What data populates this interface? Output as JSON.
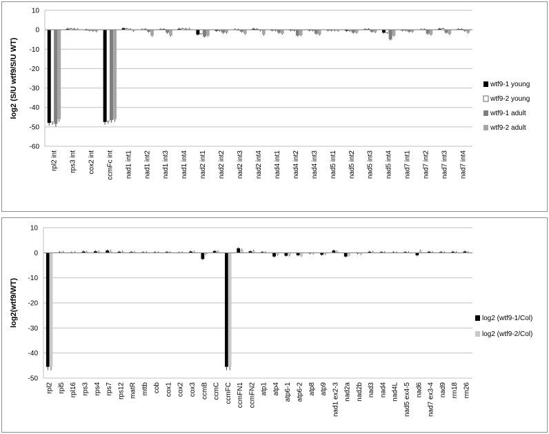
{
  "chart_data": [
    {
      "type": "bar",
      "title": "",
      "xlabel": "",
      "ylabel": "log2 (S/U wtf9/S/U WT)",
      "ylim": [
        -60,
        10
      ],
      "yticks": [
        10,
        0,
        -10,
        -20,
        -30,
        -40,
        -50,
        -60
      ],
      "grid": true,
      "legend": "right",
      "categories": [
        "rpl2 int",
        "rps3 int",
        "cox2 int",
        "ccmFc int",
        "nad1 int1",
        "nad1 int2",
        "nad1 int3",
        "nad1 int4",
        "nad2 int1",
        "nad2 int2",
        "nad2 int3",
        "nad2 int4",
        "nad4 int1",
        "nad4 int2",
        "nad4 int3",
        "nad5 int1",
        "nad5 int2",
        "nad5 int3",
        "nad5 int4",
        "nad7 int1",
        "nad7 int2",
        "nad7 int3",
        "nad7 int4"
      ],
      "series": [
        {
          "name": "wtf9-1 young",
          "color": "#000000",
          "values": [
            -48,
            0.5,
            0,
            -47.5,
            0.8,
            0.2,
            0.3,
            0.5,
            -2.5,
            -0.5,
            0.2,
            0.5,
            -0.3,
            -0.3,
            -0.3,
            -0.2,
            -0.5,
            0.3,
            -1.5,
            -0.2,
            0.2,
            0.5,
            0.3
          ]
        },
        {
          "name": "wtf9-2 young",
          "color": "#ffffff",
          "values": [
            -47.5,
            0.5,
            -0.3,
            -47,
            0.5,
            0.3,
            0.3,
            0.5,
            -2,
            -0.5,
            0,
            0.3,
            -0.3,
            -0.3,
            -0.3,
            -0.2,
            -0.5,
            0.3,
            -1.5,
            -0.2,
            0.2,
            0.5,
            0.3
          ]
        },
        {
          "name": "wtf9-1 adult",
          "color": "#7f7f7f",
          "values": [
            -48.5,
            0.5,
            -0.5,
            -46.5,
            0.3,
            -1,
            -1.5,
            0.5,
            -3.5,
            -1.5,
            -1,
            -0.3,
            -1.5,
            -3,
            -2,
            -0.3,
            -1.5,
            -1,
            -5,
            -1,
            -2,
            -1.5,
            -0.5
          ]
        },
        {
          "name": "wtf9-2 adult",
          "color": "#a6a6a6",
          "values": [
            -46,
            0.3,
            -0.8,
            -46,
            -0.5,
            -3,
            -3,
            0.5,
            -3,
            -1.5,
            -2,
            -2.5,
            -2,
            -2.8,
            -2.5,
            -0.5,
            -1.5,
            -1.2,
            -3,
            -1,
            -2.5,
            -2.2,
            -1.5
          ]
        }
      ]
    },
    {
      "type": "bar",
      "title": "",
      "xlabel": "",
      "ylabel": "log2(wtf9/WT)",
      "ylim": [
        -50,
        10
      ],
      "yticks": [
        10,
        0,
        -10,
        -20,
        -30,
        -40,
        -50
      ],
      "grid": true,
      "legend": "right",
      "categories": [
        "rpl2",
        "rpl5",
        "rpl16",
        "rps3",
        "rps4",
        "rps7",
        "rps12",
        "matR",
        "mttb",
        "cob",
        "cox1",
        "cox2",
        "cox3",
        "ccmB",
        "ccmC",
        "ccmFC",
        "ccmFN1",
        "ccmFN2",
        "atp1",
        "atp4",
        "atp6-1",
        "atp6-2",
        "atp8",
        "atp9",
        "nad1 ex2-3",
        "nad2a",
        "nad2b",
        "nad3",
        "nad4",
        "nad4L",
        "nad5 ex4-5",
        "nad6",
        "nad7 ex3-4",
        "nad9",
        "rrn18",
        "rrn26"
      ],
      "series": [
        {
          "name": "log2 (wtf9-1/Col)",
          "color": "#000000",
          "values": [
            -45.5,
            0.2,
            0.1,
            0.5,
            0.6,
            0.9,
            0.4,
            0.3,
            0.2,
            0.2,
            0.3,
            0.1,
            0.5,
            -2.5,
            0.7,
            -45.5,
            1.8,
            0.6,
            0.3,
            -1.5,
            -1.2,
            -1,
            -0.2,
            -0.8,
            0.9,
            -1.5,
            -0.2,
            0.4,
            0.3,
            0.2,
            0.3,
            -1,
            0.4,
            0.3,
            0.4,
            0.5
          ]
        },
        {
          "name": "log2 (wtf9-2/Col)",
          "color": "#c8c8c8",
          "values": [
            -45.5,
            0.3,
            0.2,
            0.4,
            0.5,
            0.8,
            0.5,
            0.3,
            0.3,
            0.2,
            0.2,
            0.2,
            0.4,
            -0.5,
            0.6,
            -45.5,
            1.2,
            0.8,
            0.2,
            -0.8,
            -1,
            -1.2,
            -0.3,
            -0.5,
            0.5,
            -1,
            -0.5,
            0.3,
            0.2,
            0.1,
            0.2,
            0.8,
            0.3,
            0.2,
            0.3,
            0.2
          ]
        }
      ]
    }
  ]
}
